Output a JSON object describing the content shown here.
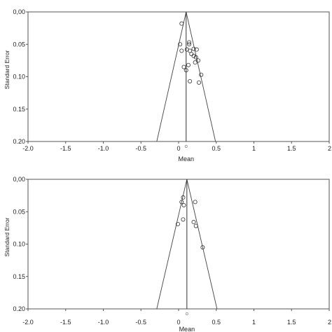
{
  "chart_data": [
    {
      "type": "scatter",
      "panel_label": "",
      "title": "",
      "xlabel": "Mean",
      "ylabel": "Standard Error",
      "xlim": [
        -2.0,
        2.0
      ],
      "ylim": [
        0.0,
        0.2
      ],
      "y_inverted": true,
      "xticks": [
        "-2.0",
        "-1.5",
        "-1.0",
        "-0.5",
        "0",
        "0.5",
        "1",
        "1.5",
        "2"
      ],
      "yticks": [
        "0,00",
        "0.05",
        "0.10",
        "0.15",
        "0.20"
      ],
      "pooled_estimate": 0.1,
      "funnel": {
        "apex": [
          0.1,
          0.0
        ],
        "left_base": [
          -0.29,
          0.2
        ],
        "right_base": [
          0.49,
          0.2
        ]
      },
      "points": [
        {
          "x": 0.04,
          "y": 0.018
        },
        {
          "x": 0.14,
          "y": 0.047
        },
        {
          "x": 0.14,
          "y": 0.05
        },
        {
          "x": 0.02,
          "y": 0.05
        },
        {
          "x": 0.04,
          "y": 0.06
        },
        {
          "x": 0.11,
          "y": 0.058
        },
        {
          "x": 0.15,
          "y": 0.06
        },
        {
          "x": 0.2,
          "y": 0.057
        },
        {
          "x": 0.24,
          "y": 0.058
        },
        {
          "x": 0.17,
          "y": 0.065
        },
        {
          "x": 0.2,
          "y": 0.068
        },
        {
          "x": 0.23,
          "y": 0.07
        },
        {
          "x": 0.22,
          "y": 0.078
        },
        {
          "x": 0.26,
          "y": 0.075
        },
        {
          "x": 0.13,
          "y": 0.082
        },
        {
          "x": 0.07,
          "y": 0.085
        },
        {
          "x": 0.1,
          "y": 0.09
        },
        {
          "x": 0.3,
          "y": 0.097
        },
        {
          "x": 0.15,
          "y": 0.107
        },
        {
          "x": 0.27,
          "y": 0.109
        }
      ]
    },
    {
      "type": "scatter",
      "panel_label": "",
      "title": "",
      "xlabel": "Mean",
      "ylabel": "Standard Error",
      "xlim": [
        -2.0,
        2.0
      ],
      "ylim": [
        0.0,
        0.2
      ],
      "y_inverted": true,
      "xticks": [
        "-2.0",
        "-1.5",
        "-1.0",
        "-0.5",
        "0",
        "0.5",
        "1",
        "1.5",
        "2"
      ],
      "yticks": [
        "0,00",
        "0.05",
        "0.10",
        "0.15",
        "0.20"
      ],
      "pooled_estimate": 0.11,
      "funnel": {
        "apex": [
          0.11,
          0.0
        ],
        "left_base": [
          -0.29,
          0.2
        ],
        "right_base": [
          0.51,
          0.2
        ]
      },
      "points": [
        {
          "x": 0.06,
          "y": 0.028
        },
        {
          "x": 0.04,
          "y": 0.035
        },
        {
          "x": 0.07,
          "y": 0.04
        },
        {
          "x": 0.22,
          "y": 0.035
        },
        {
          "x": 0.06,
          "y": 0.062
        },
        {
          "x": 0.2,
          "y": 0.066
        },
        {
          "x": 0.23,
          "y": 0.072
        },
        {
          "x": -0.01,
          "y": 0.069
        },
        {
          "x": 0.32,
          "y": 0.105
        }
      ]
    }
  ]
}
